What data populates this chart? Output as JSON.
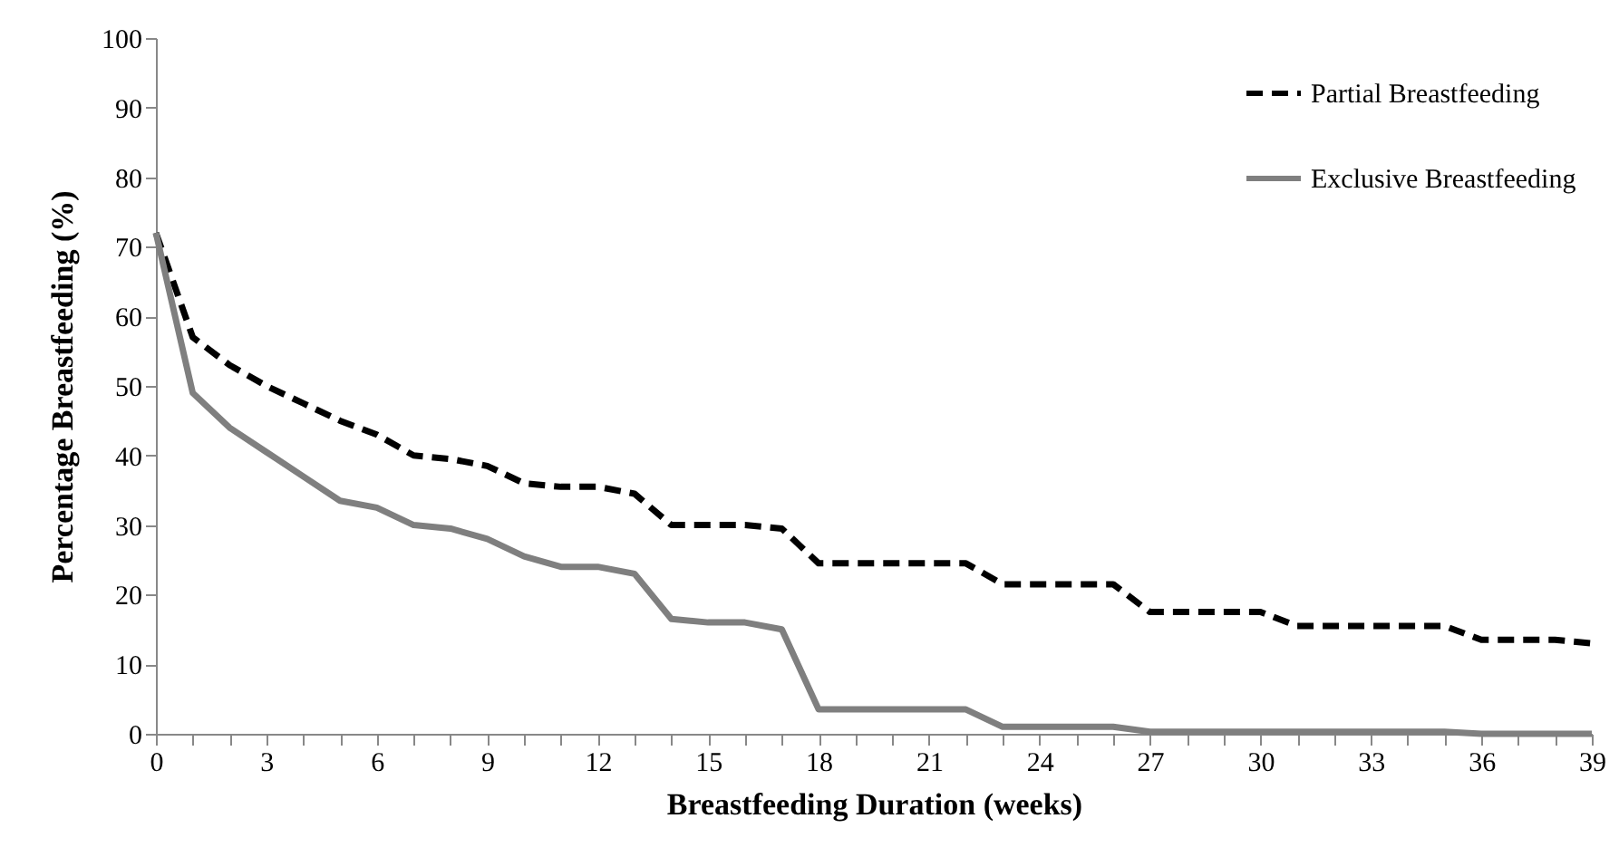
{
  "chart_data": {
    "type": "line",
    "xlabel": "Breastfeeding Duration (weeks)",
    "ylabel": "Percentage Breastfeeding (%)",
    "x": [
      0,
      1,
      2,
      3,
      4,
      5,
      6,
      7,
      8,
      9,
      10,
      11,
      12,
      13,
      14,
      15,
      16,
      17,
      18,
      19,
      20,
      21,
      22,
      23,
      24,
      25,
      26,
      27,
      28,
      29,
      30,
      31,
      32,
      33,
      34,
      35,
      36,
      37,
      38,
      39
    ],
    "series": [
      {
        "name": "Partial Breastfeeding",
        "color": "#000000",
        "line_style": "dashed",
        "values": [
          72,
          57,
          53,
          50,
          47.5,
          45,
          43,
          40,
          39.5,
          38.5,
          36,
          35.5,
          35.5,
          34.5,
          30,
          30,
          30,
          29.5,
          24.5,
          24.5,
          24.5,
          24.5,
          24.5,
          21.5,
          21.5,
          21.5,
          21.5,
          17.5,
          17.5,
          17.5,
          17.5,
          15.5,
          15.5,
          15.5,
          15.5,
          15.5,
          13.5,
          13.5,
          13.5,
          13
        ]
      },
      {
        "name": "Exclusive Breastfeeding",
        "color": "#7f7f7f",
        "line_style": "solid",
        "values": [
          72,
          49,
          44,
          40.5,
          37,
          33.5,
          32.5,
          30,
          29.5,
          28,
          25.5,
          24,
          24,
          23,
          16.5,
          16,
          16,
          15,
          3.5,
          3.5,
          3.5,
          3.5,
          3.5,
          1,
          1,
          1,
          1,
          0.3,
          0.3,
          0.3,
          0.3,
          0.3,
          0.3,
          0.3,
          0.3,
          0.3,
          0,
          0,
          0,
          0
        ]
      }
    ],
    "xlim": [
      0,
      39
    ],
    "xticks": [
      0,
      {
        "value": 1,
        "label": null
      },
      {
        "value": 2,
        "label": null
      },
      3,
      {
        "value": 4,
        "label": null
      },
      {
        "value": 5,
        "label": null
      },
      6,
      {
        "value": 7,
        "label": null
      },
      {
        "value": 8,
        "label": null
      },
      9,
      {
        "value": 10,
        "label": null
      },
      {
        "value": 11,
        "label": null
      },
      12,
      {
        "value": 13,
        "label": null
      },
      {
        "value": 14,
        "label": null
      },
      15,
      {
        "value": 16,
        "label": null
      },
      {
        "value": 17,
        "label": null
      },
      18,
      {
        "value": 19,
        "label": null
      },
      {
        "value": 20,
        "label": null
      },
      21,
      {
        "value": 22,
        "label": null
      },
      {
        "value": 23,
        "label": null
      },
      24,
      {
        "value": 25,
        "label": null
      },
      {
        "value": 26,
        "label": null
      },
      27,
      {
        "value": 28,
        "label": null
      },
      {
        "value": 29,
        "label": null
      },
      30,
      {
        "value": 31,
        "label": null
      },
      {
        "value": 32,
        "label": null
      },
      33,
      {
        "value": 34,
        "label": null
      },
      {
        "value": 35,
        "label": null
      },
      36,
      {
        "value": 37,
        "label": null
      },
      {
        "value": 38,
        "label": null
      },
      39
    ],
    "ylim": [
      0,
      100
    ],
    "yticks": [
      0,
      10,
      20,
      30,
      40,
      50,
      60,
      70,
      80,
      90,
      100
    ],
    "grid": false,
    "legend": "top right",
    "marker": "none"
  }
}
